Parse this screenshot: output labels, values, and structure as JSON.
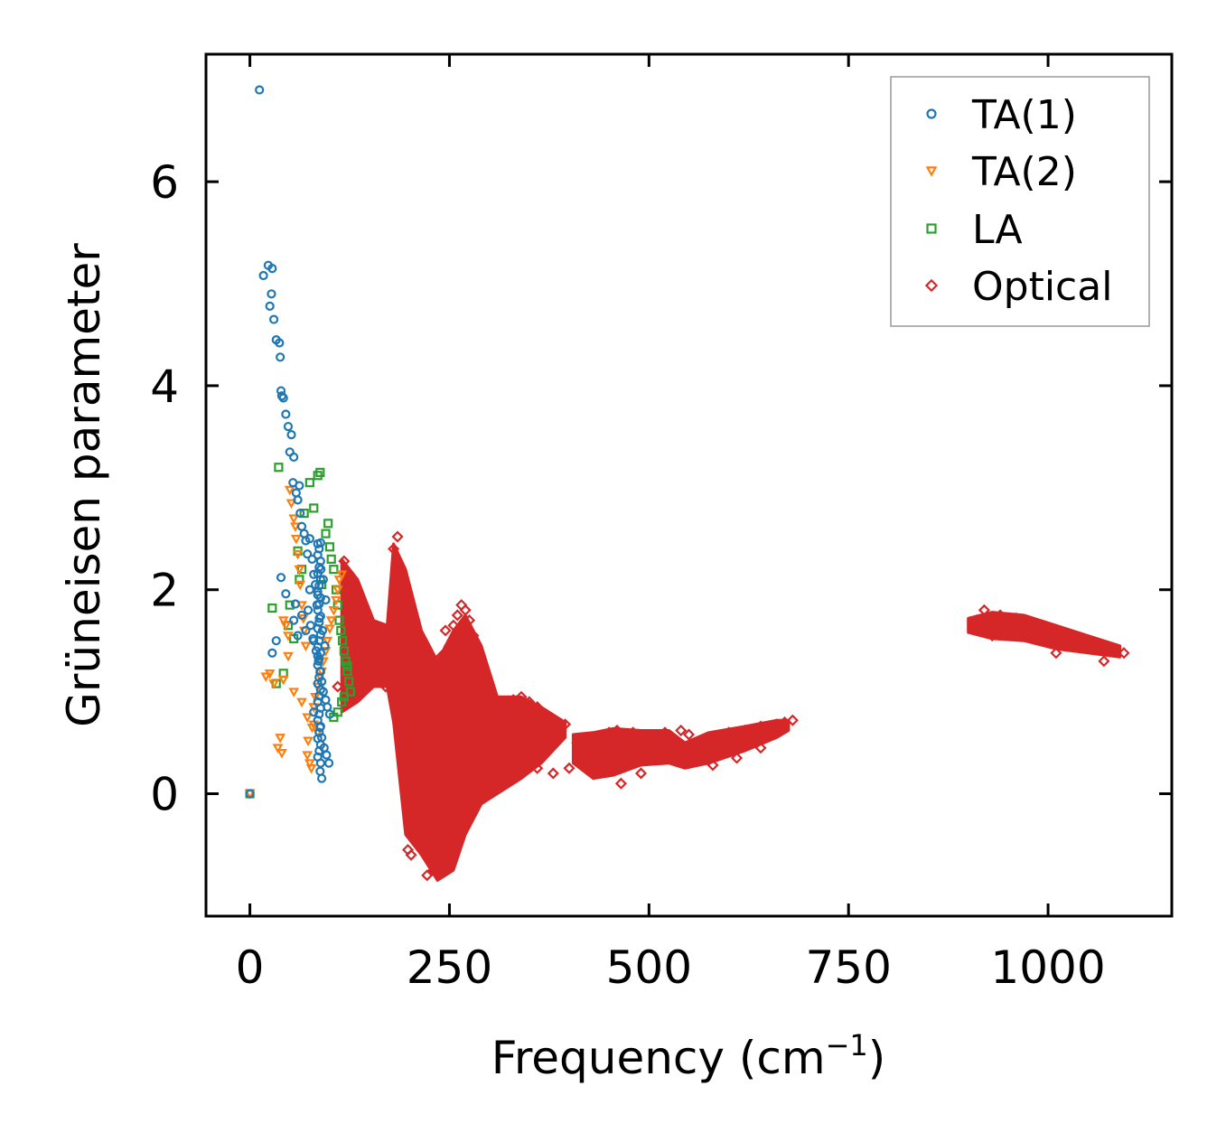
{
  "chart_data": {
    "type": "scatter",
    "title": "",
    "xlabel": "Frequency (cm",
    "xlabel_sup": "−1",
    "xlabel_suffix": ")",
    "ylabel": "Grüneisen parameter",
    "xlim": [
      -55,
      1155
    ],
    "ylim": [
      -1.2,
      7.25
    ],
    "xticks": [
      0,
      250,
      500,
      750,
      1000
    ],
    "xtick_labels": [
      "0",
      "250",
      "500",
      "750",
      "1000"
    ],
    "yticks": [
      0,
      2,
      4,
      6
    ],
    "ytick_labels": [
      "0",
      "2",
      "4",
      "6"
    ],
    "grid": false,
    "legend_position": "top-right",
    "series": [
      {
        "name": "TA(1)",
        "marker": "circle",
        "color": "#1f77b4",
        "x": [
          0,
          12,
          17,
          23,
          27,
          28,
          25,
          30,
          33,
          37,
          38,
          39,
          42,
          40,
          45,
          48,
          52,
          50,
          55,
          54,
          58,
          60,
          63,
          65,
          62,
          68,
          70,
          72,
          75,
          78,
          80,
          82,
          85,
          73,
          76,
          79,
          83,
          86,
          88,
          90,
          92,
          95,
          97,
          100,
          88,
          90,
          93,
          96,
          99,
          84,
          87,
          91,
          94,
          89,
          85,
          92,
          95,
          39,
          45,
          57,
          65,
          70,
          80,
          85,
          90,
          28,
          33,
          55,
          60,
          75,
          80,
          88
        ],
        "y": [
          0,
          6.9,
          5.08,
          5.18,
          4.9,
          5.15,
          4.78,
          4.65,
          4.45,
          4.42,
          4.28,
          3.95,
          3.88,
          3.9,
          3.72,
          3.6,
          3.52,
          3.35,
          3.3,
          3.05,
          2.95,
          2.88,
          2.75,
          2.62,
          3.02,
          2.55,
          2.48,
          2.35,
          2.5,
          2.3,
          2.15,
          2.05,
          1.95,
          1.8,
          1.65,
          1.52,
          1.4,
          1.3,
          1.2,
          1.1,
          1.0,
          0.92,
          0.85,
          0.78,
          0.65,
          0.55,
          0.45,
          0.38,
          0.3,
          1.85,
          1.72,
          1.6,
          1.45,
          2.2,
          2.45,
          2.1,
          1.9,
          2.12,
          1.96,
          1.86,
          1.75,
          1.6,
          1.5,
          1.35,
          0.15,
          1.38,
          1.5,
          1.7,
          1.55,
          2.0,
          0.8,
          0.22
        ]
      },
      {
        "name": "TA(2)",
        "marker": "triangle-down",
        "color": "#ff7f0e",
        "x": [
          0,
          20,
          25,
          30,
          35,
          38,
          40,
          42,
          45,
          48,
          50,
          52,
          55,
          57,
          58,
          60,
          62,
          63,
          65,
          67,
          68,
          70,
          72,
          73,
          75,
          77,
          78,
          80,
          82,
          85,
          88,
          90,
          92,
          95,
          97,
          100,
          102,
          105,
          108,
          110,
          112,
          115,
          42,
          48,
          55,
          65,
          72,
          80,
          85
        ],
        "y": [
          0,
          1.15,
          1.18,
          1.08,
          0.45,
          0.55,
          0.4,
          1.12,
          1.65,
          1.35,
          2.98,
          2.85,
          2.7,
          2.62,
          2.5,
          2.35,
          2.2,
          2.05,
          1.85,
          1.72,
          1.6,
          1.45,
          0.38,
          0.52,
          0.3,
          0.25,
          0.65,
          0.85,
          0.95,
          1.05,
          1.15,
          1.2,
          1.3,
          1.4,
          1.5,
          1.62,
          1.7,
          1.8,
          1.9,
          2.0,
          2.1,
          2.15,
          1.7,
          1.55,
          1.0,
          0.9,
          0.75,
          0.68,
          0.6
        ]
      },
      {
        "name": "LA",
        "marker": "square",
        "color": "#2ca02c",
        "x": [
          0,
          28,
          33,
          36,
          42,
          48,
          55,
          60,
          62,
          68,
          75,
          80,
          85,
          88,
          90,
          95,
          98,
          100,
          102,
          105,
          108,
          110,
          112,
          114,
          116,
          118,
          120,
          122,
          124,
          126,
          105,
          110,
          115,
          118,
          122,
          50,
          65
        ],
        "y": [
          0,
          1.82,
          1.08,
          3.2,
          1.18,
          1.65,
          1.52,
          2.38,
          2.1,
          2.75,
          3.05,
          2.8,
          3.12,
          3.15,
          2.05,
          2.55,
          2.65,
          2.42,
          2.3,
          2.2,
          2.0,
          1.85,
          1.7,
          1.6,
          1.5,
          1.4,
          1.3,
          1.2,
          1.1,
          1.0,
          0.75,
          0.8,
          0.9,
          0.95,
          1.25,
          1.85,
          2.2
        ]
      },
      {
        "name": "Optical",
        "marker": "diamond",
        "color": "#d62728",
        "x": [
          110,
          118,
          122,
          125,
          130,
          140,
          150,
          160,
          170,
          180,
          185,
          188,
          190,
          192,
          195,
          198,
          200,
          205,
          210,
          215,
          220,
          225,
          230,
          235,
          240,
          245,
          250,
          255,
          260,
          265,
          270,
          275,
          280,
          285,
          290,
          300,
          310,
          320,
          330,
          340,
          350,
          360,
          370,
          380,
          395,
          410,
          430,
          450,
          460,
          480,
          500,
          520,
          540,
          550,
          560,
          580,
          600,
          620,
          640,
          660,
          670,
          680,
          910,
          920,
          940,
          960,
          980,
          1000,
          1020,
          1040,
          1060,
          1080,
          1095,
          198,
          202,
          210,
          222,
          230,
          240,
          250,
          262,
          275,
          295,
          320,
          340,
          360,
          380,
          400,
          420,
          440,
          465,
          490,
          520,
          550,
          580,
          610,
          640,
          930,
          960,
          1010,
          1070
        ],
        "y": [
          1.05,
          2.28,
          2.15,
          1.9,
          1.4,
          1.7,
          1.55,
          1.3,
          1.05,
          2.4,
          2.52,
          2.2,
          1.9,
          1.6,
          1.3,
          1.0,
          0.7,
          0.45,
          0.3,
          0.2,
          0.1,
          0.05,
          0.3,
          1.2,
          1.35,
          1.6,
          1.45,
          1.65,
          1.75,
          1.85,
          1.8,
          1.7,
          1.55,
          1.4,
          1.2,
          0.9,
          0.85,
          0.88,
          0.92,
          0.95,
          0.9,
          0.85,
          0.78,
          0.72,
          0.68,
          0.5,
          0.55,
          0.6,
          0.62,
          0.6,
          0.55,
          0.6,
          0.62,
          0.58,
          0.5,
          0.55,
          0.6,
          0.62,
          0.66,
          0.68,
          0.7,
          0.72,
          1.7,
          1.8,
          1.75,
          1.72,
          1.66,
          1.6,
          1.55,
          1.5,
          1.45,
          1.42,
          1.38,
          -0.55,
          -0.6,
          -0.5,
          -0.8,
          -0.75,
          -0.5,
          -0.3,
          -0.2,
          0.05,
          0.0,
          0.15,
          0.3,
          0.25,
          0.2,
          0.25,
          0.3,
          0.32,
          0.1,
          0.2,
          0.35,
          0.3,
          0.28,
          0.35,
          0.45,
          1.55,
          1.6,
          1.38,
          1.3
        ]
      }
    ],
    "optical_bands": [
      [
        [
          115,
          0.8,
          2.3
        ],
        [
          135,
          0.9,
          2.1
        ],
        [
          155,
          1.05,
          1.7
        ],
        [
          172,
          1.05,
          1.65
        ],
        [
          180,
          0.7,
          2.45
        ],
        [
          195,
          -0.4,
          2.2
        ],
        [
          215,
          -0.6,
          1.6
        ],
        [
          235,
          -0.85,
          1.3
        ],
        [
          255,
          -0.75,
          1.6
        ],
        [
          270,
          -0.4,
          1.75
        ],
        [
          290,
          -0.1,
          1.45
        ],
        [
          310,
          0.0,
          0.95
        ],
        [
          340,
          0.15,
          0.95
        ],
        [
          365,
          0.3,
          0.85
        ],
        [
          395,
          0.55,
          0.7
        ]
      ],
      [
        [
          405,
          0.3,
          0.58
        ],
        [
          430,
          0.15,
          0.6
        ],
        [
          455,
          0.18,
          0.64
        ],
        [
          490,
          0.28,
          0.62
        ],
        [
          525,
          0.3,
          0.62
        ],
        [
          545,
          0.25,
          0.5
        ],
        [
          575,
          0.3,
          0.6
        ],
        [
          620,
          0.42,
          0.66
        ],
        [
          660,
          0.55,
          0.72
        ],
        [
          675,
          0.62,
          0.72
        ]
      ],
      [
        [
          900,
          1.58,
          1.72
        ],
        [
          930,
          1.52,
          1.78
        ],
        [
          970,
          1.5,
          1.75
        ],
        [
          1010,
          1.42,
          1.65
        ],
        [
          1050,
          1.38,
          1.55
        ],
        [
          1090,
          1.34,
          1.45
        ]
      ]
    ]
  }
}
